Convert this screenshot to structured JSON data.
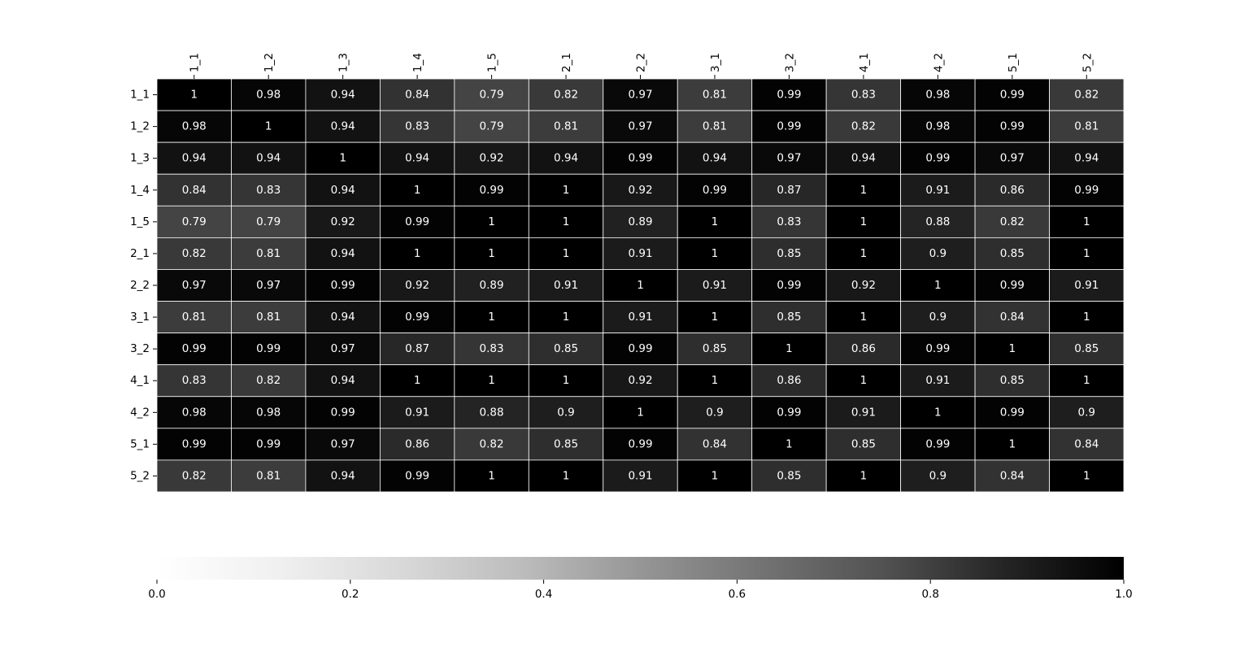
{
  "chart_data": {
    "type": "heatmap",
    "title": "",
    "xlabel": "",
    "ylabel": "",
    "x_labels": [
      "1_1",
      "1_2",
      "1_3",
      "1_4",
      "1_5",
      "2_1",
      "2_2",
      "3_1",
      "3_2",
      "4_1",
      "4_2",
      "5_1",
      "5_2"
    ],
    "y_labels": [
      "1_1",
      "1_2",
      "1_3",
      "1_4",
      "1_5",
      "2_1",
      "2_2",
      "3_1",
      "3_2",
      "4_1",
      "4_2",
      "5_1",
      "5_2"
    ],
    "values": [
      [
        1,
        0.98,
        0.94,
        0.84,
        0.79,
        0.82,
        0.97,
        0.81,
        0.99,
        0.83,
        0.98,
        0.99,
        0.82
      ],
      [
        0.98,
        1,
        0.94,
        0.83,
        0.79,
        0.81,
        0.97,
        0.81,
        0.99,
        0.82,
        0.98,
        0.99,
        0.81
      ],
      [
        0.94,
        0.94,
        1,
        0.94,
        0.92,
        0.94,
        0.99,
        0.94,
        0.97,
        0.94,
        0.99,
        0.97,
        0.94
      ],
      [
        0.84,
        0.83,
        0.94,
        1,
        0.99,
        1,
        0.92,
        0.99,
        0.87,
        1,
        0.91,
        0.86,
        0.99
      ],
      [
        0.79,
        0.79,
        0.92,
        0.99,
        1,
        1,
        0.89,
        1,
        0.83,
        1,
        0.88,
        0.82,
        1
      ],
      [
        0.82,
        0.81,
        0.94,
        1,
        1,
        1,
        0.91,
        1,
        0.85,
        1,
        0.9,
        0.85,
        1
      ],
      [
        0.97,
        0.97,
        0.99,
        0.92,
        0.89,
        0.91,
        1,
        0.91,
        0.99,
        0.92,
        1,
        0.99,
        0.91
      ],
      [
        0.81,
        0.81,
        0.94,
        0.99,
        1,
        1,
        0.91,
        1,
        0.85,
        1,
        0.9,
        0.84,
        1
      ],
      [
        0.99,
        0.99,
        0.97,
        0.87,
        0.83,
        0.85,
        0.99,
        0.85,
        1,
        0.86,
        0.99,
        1,
        0.85
      ],
      [
        0.83,
        0.82,
        0.94,
        1,
        1,
        1,
        0.92,
        1,
        0.86,
        1,
        0.91,
        0.85,
        1
      ],
      [
        0.98,
        0.98,
        0.99,
        0.91,
        0.88,
        0.9,
        1,
        0.9,
        0.99,
        0.91,
        1,
        0.99,
        0.9
      ],
      [
        0.99,
        0.99,
        0.97,
        0.86,
        0.82,
        0.85,
        0.99,
        0.84,
        1,
        0.85,
        0.99,
        1,
        0.84
      ],
      [
        0.82,
        0.81,
        0.94,
        0.99,
        1,
        1,
        0.91,
        1,
        0.85,
        1,
        0.9,
        0.84,
        1
      ]
    ],
    "colormap": {
      "name": "Greys",
      "vmin": 0.0,
      "vmax": 1.0,
      "low_color": "#ffffff",
      "high_color": "#000000",
      "ticks": [
        "0.0",
        "0.2",
        "0.4",
        "0.6",
        "0.8",
        "1.0"
      ],
      "orientation": "horizontal",
      "placement": "bottom"
    },
    "annotation_color": "#ffffff",
    "cell_border_color": "#ffffff",
    "x_labels_position": "top",
    "grid": false
  }
}
